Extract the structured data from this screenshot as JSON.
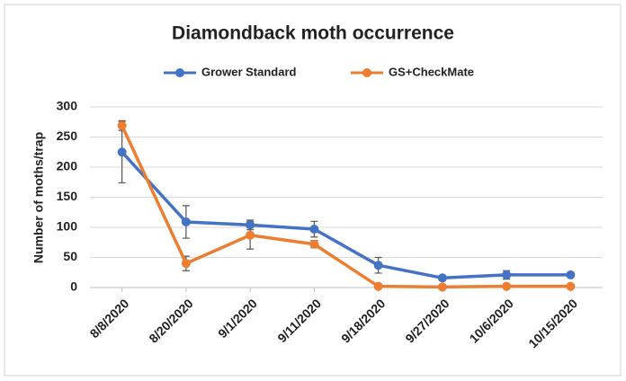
{
  "chart_data": {
    "type": "line",
    "title": "Diamondback moth occurrence",
    "y_label": "Number of moths/trap",
    "categories": [
      "8/8/2020",
      "8/20/2020",
      "9/1/2020",
      "9/11/2020",
      "9/18/2020",
      "9/27/2020",
      "10/6/2020",
      "10/15/2020"
    ],
    "series": [
      {
        "name": "Grower Standard",
        "color": "#4472c4",
        "values": [
          225,
          109,
          104,
          97,
          37,
          16,
          21,
          21
        ],
        "errors": [
          51,
          27,
          8,
          13,
          13,
          4,
          7,
          2
        ]
      },
      {
        "name": "GS+CheckMate",
        "color": "#ed7d31",
        "values": [
          269,
          40,
          87,
          72,
          2,
          1,
          2,
          2
        ],
        "errors": [
          8,
          12,
          23,
          6,
          0,
          0,
          0,
          0
        ]
      }
    ],
    "ylim": [
      0,
      300
    ],
    "yticks": [
      0,
      50,
      100,
      150,
      200,
      250,
      300
    ],
    "grid": true,
    "legend": "top"
  }
}
